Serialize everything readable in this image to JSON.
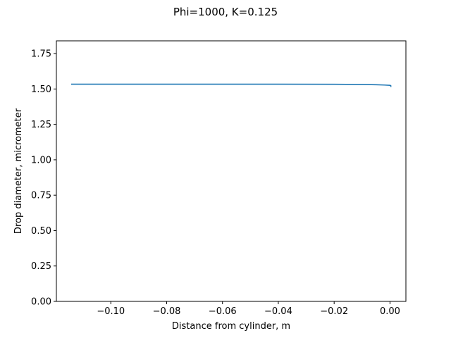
{
  "chart_data": {
    "type": "line",
    "title": "Phi=1000, K=0.125",
    "xlabel": "Distance from cylinder, m",
    "ylabel": "Drop diameter, micrometer",
    "xlim": [
      -0.1195,
      0.0057
    ],
    "ylim": [
      0.0,
      1.84
    ],
    "xticks": [
      -0.1,
      -0.08,
      -0.06,
      -0.04,
      -0.02,
      0.0
    ],
    "xtick_labels": [
      "−0.10",
      "−0.08",
      "−0.06",
      "−0.04",
      "−0.02",
      "0.00"
    ],
    "yticks": [
      0.0,
      0.25,
      0.5,
      0.75,
      1.0,
      1.25,
      1.5,
      1.75
    ],
    "ytick_labels": [
      "0.00",
      "0.25",
      "0.50",
      "0.75",
      "1.00",
      "1.25",
      "1.50",
      "1.75"
    ],
    "grid": false,
    "legend": "none",
    "series": [
      {
        "color": "#1f77b4",
        "x": [
          -0.114,
          -0.1,
          -0.08,
          -0.06,
          -0.04,
          -0.02,
          -0.01,
          -0.005,
          -0.002,
          0.0,
          0.0003,
          0.0003
        ],
        "y": [
          1.534,
          1.534,
          1.534,
          1.534,
          1.534,
          1.533,
          1.532,
          1.53,
          1.528,
          1.526,
          1.523,
          1.518
        ]
      }
    ]
  }
}
